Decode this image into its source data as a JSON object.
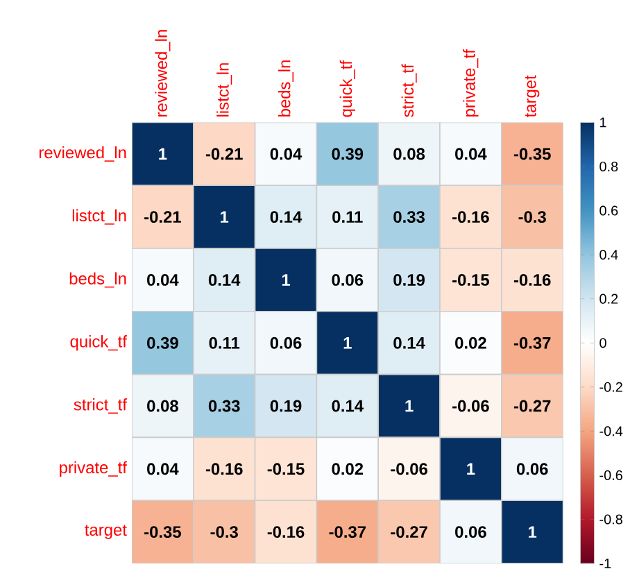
{
  "chart_data": {
    "type": "heatmap",
    "categories": [
      "reviewed_ln",
      "listct_ln",
      "beds_ln",
      "quick_tf",
      "strict_tf",
      "private_tf",
      "target"
    ],
    "y_categories": [
      "reviewed_ln",
      "listct_ln",
      "beds_ln",
      "quick_tf",
      "strict_tf",
      "private_tf",
      "target"
    ],
    "cells": [
      [
        1,
        -0.21,
        0.04,
        0.39,
        0.08,
        0.04,
        -0.35
      ],
      [
        -0.21,
        1,
        0.14,
        0.11,
        0.33,
        -0.16,
        -0.3
      ],
      [
        0.04,
        0.14,
        1,
        0.06,
        0.19,
        -0.15,
        -0.16
      ],
      [
        0.39,
        0.11,
        0.06,
        1,
        0.14,
        0.02,
        -0.37
      ],
      [
        0.08,
        0.33,
        0.19,
        0.14,
        1,
        -0.06,
        -0.27
      ],
      [
        0.04,
        -0.16,
        -0.15,
        0.02,
        -0.06,
        1,
        0.06
      ],
      [
        -0.35,
        -0.3,
        -0.16,
        -0.37,
        -0.27,
        0.06,
        1
      ]
    ],
    "clim": [
      -1,
      1
    ],
    "cticks": [
      -1,
      -0.8,
      -0.6,
      -0.4,
      -0.2,
      0,
      0.2,
      0.4,
      0.6,
      0.8,
      1
    ],
    "data_labels": true
  }
}
